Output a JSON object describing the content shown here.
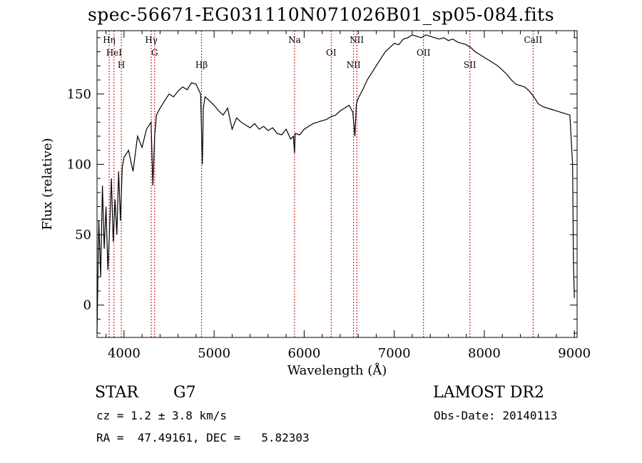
{
  "title": "spec-56671-EG031110N071026B01_sp05-084.fits",
  "info": {
    "class": "STAR",
    "subclass": "G7",
    "survey": "LAMOST DR2",
    "cz": "cz = 1.2 ± 3.8 km/s",
    "obs_date": "Obs-Date: 20140113",
    "radec": "RA =  47.49161, DEC =   5.82303"
  },
  "chart_data": {
    "type": "line",
    "title": "spec-56671-EG031110N071026B01_sp05-084.fits",
    "xlabel": "Wavelength (Å)",
    "ylabel": "Flux (relative)",
    "xlim": [
      3700,
      9030
    ],
    "ylim": [
      -23,
      195
    ],
    "xticks": [
      4000,
      5000,
      6000,
      7000,
      8000,
      9000
    ],
    "yticks": [
      0,
      50,
      100,
      150
    ],
    "grid": false,
    "line_color": "#000000",
    "marker_color": "#cc0000",
    "series": [
      {
        "x": [
          3700,
          3720,
          3740,
          3760,
          3780,
          3800,
          3820,
          3840,
          3860,
          3880,
          3900,
          3920,
          3940,
          3960,
          3980,
          4000,
          4050,
          4100,
          4150,
          4200,
          4250,
          4300,
          4320,
          4340,
          4360,
          4400,
          4450,
          4500,
          4550,
          4600,
          4650,
          4700,
          4750,
          4800,
          4850,
          4870,
          4880,
          4900,
          4950,
          5000,
          5050,
          5100,
          5150,
          5200,
          5250,
          5300,
          5350,
          5400,
          5450,
          5500,
          5550,
          5600,
          5650,
          5700,
          5750,
          5800,
          5850,
          5880,
          5893,
          5900,
          5950,
          6000,
          6050,
          6100,
          6150,
          6200,
          6250,
          6300,
          6350,
          6400,
          6450,
          6500,
          6540,
          6563,
          6580,
          6600,
          6650,
          6700,
          6750,
          6800,
          6850,
          6900,
          6950,
          7000,
          7050,
          7100,
          7150,
          7200,
          7250,
          7300,
          7350,
          7400,
          7450,
          7500,
          7550,
          7600,
          7650,
          7700,
          7750,
          7800,
          7850,
          7900,
          7950,
          8000,
          8050,
          8100,
          8150,
          8200,
          8250,
          8300,
          8350,
          8400,
          8450,
          8500,
          8550,
          8600,
          8650,
          8700,
          8750,
          8800,
          8850,
          8900,
          8950,
          8980,
          8990,
          9000
        ],
        "y": [
          -20,
          60,
          20,
          85,
          40,
          70,
          25,
          55,
          90,
          45,
          75,
          50,
          95,
          60,
          98,
          105,
          110,
          95,
          120,
          112,
          125,
          130,
          85,
          120,
          135,
          140,
          145,
          150,
          148,
          152,
          155,
          153,
          158,
          157,
          150,
          100,
          140,
          148,
          145,
          142,
          138,
          135,
          140,
          125,
          133,
          130,
          128,
          126,
          129,
          125,
          127,
          124,
          126,
          122,
          121,
          125,
          118,
          120,
          108,
          122,
          121,
          125,
          127,
          129,
          130,
          131,
          132,
          134,
          135,
          138,
          140,
          142,
          137,
          120,
          143,
          147,
          153,
          160,
          165,
          170,
          175,
          180,
          183,
          186,
          185,
          189,
          190,
          192,
          191,
          190,
          192,
          191,
          190,
          189,
          190,
          188,
          189,
          187,
          186,
          185,
          183,
          180,
          178,
          176,
          174,
          172,
          170,
          167,
          164,
          160,
          157,
          156,
          155,
          152,
          148,
          143,
          141,
          140,
          139,
          138,
          137,
          136,
          135,
          100,
          30,
          5
        ]
      }
    ],
    "lines": [
      {
        "name": "Hη",
        "wave": 3835
      },
      {
        "name": "HeI",
        "wave": 3889
      },
      {
        "name": "H",
        "wave": 3970
      },
      {
        "name": "Hγ",
        "wave": 4302
      },
      {
        "name": "G",
        "wave": 4340
      },
      {
        "name": "Hβ",
        "wave": 4861
      },
      {
        "name": "Na",
        "wave": 5893
      },
      {
        "name": "OI",
        "wave": 6300
      },
      {
        "name": "NII",
        "wave": 6548
      },
      {
        "name": "NII",
        "wave": 6584
      },
      {
        "name": "OII",
        "wave": 7325
      },
      {
        "name": "SII",
        "wave": 7840
      },
      {
        "name": "CaII",
        "wave": 8542
      }
    ]
  }
}
